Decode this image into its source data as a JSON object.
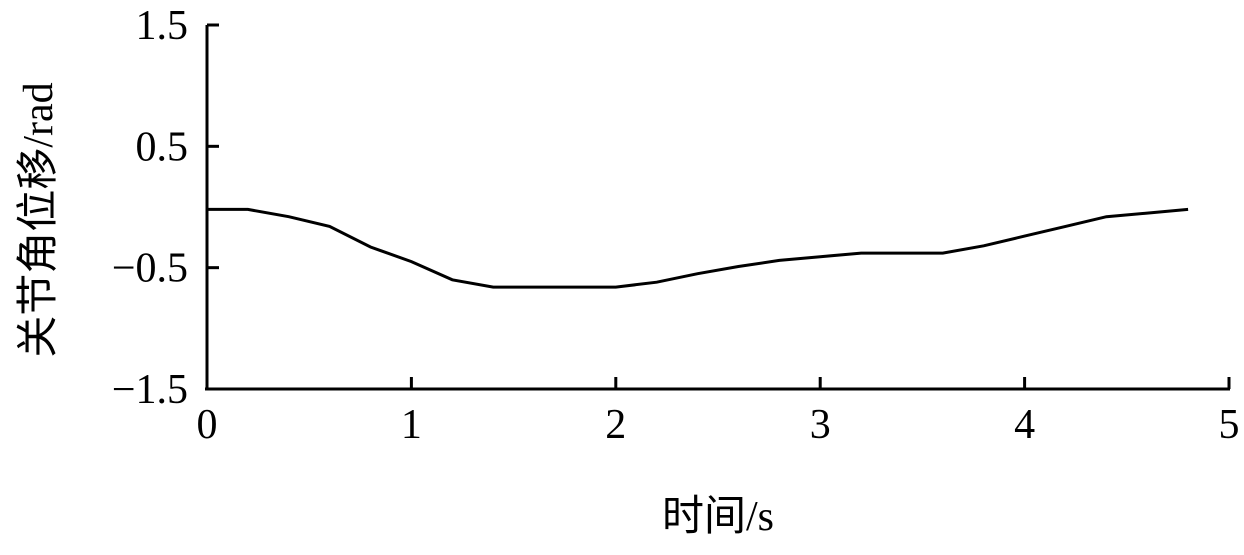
{
  "chart_data": {
    "type": "line",
    "xlabel": "时间/s",
    "ylabel": "关节角位移/rad",
    "xlim": [
      0,
      5
    ],
    "ylim": [
      -1.5,
      1.5
    ],
    "xticks": [
      "0",
      "1",
      "2",
      "3",
      "4",
      "5"
    ],
    "xtick_values": [
      0,
      1,
      2,
      3,
      4,
      5
    ],
    "yticks": [
      "1.5",
      "0.5",
      "−0.5",
      "−1.5"
    ],
    "ytick_values": [
      1.5,
      0.5,
      -0.5,
      -1.5
    ],
    "grid": false,
    "series": [
      {
        "color": "#000000",
        "x": [
          0,
          0.2,
          0.4,
          0.6,
          0.8,
          1.0,
          1.2,
          1.4,
          1.6,
          1.8,
          2.0,
          2.2,
          2.4,
          2.6,
          2.8,
          3.0,
          3.2,
          3.4,
          3.6,
          3.8,
          4.0,
          4.2,
          4.4,
          4.6,
          4.8
        ],
        "y": [
          -0.02,
          -0.02,
          -0.08,
          -0.16,
          -0.33,
          -0.45,
          -0.6,
          -0.66,
          -0.66,
          -0.66,
          -0.66,
          -0.62,
          -0.55,
          -0.49,
          -0.44,
          -0.41,
          -0.38,
          -0.38,
          -0.38,
          -0.32,
          -0.24,
          -0.16,
          -0.08,
          -0.05,
          -0.02
        ]
      }
    ]
  }
}
